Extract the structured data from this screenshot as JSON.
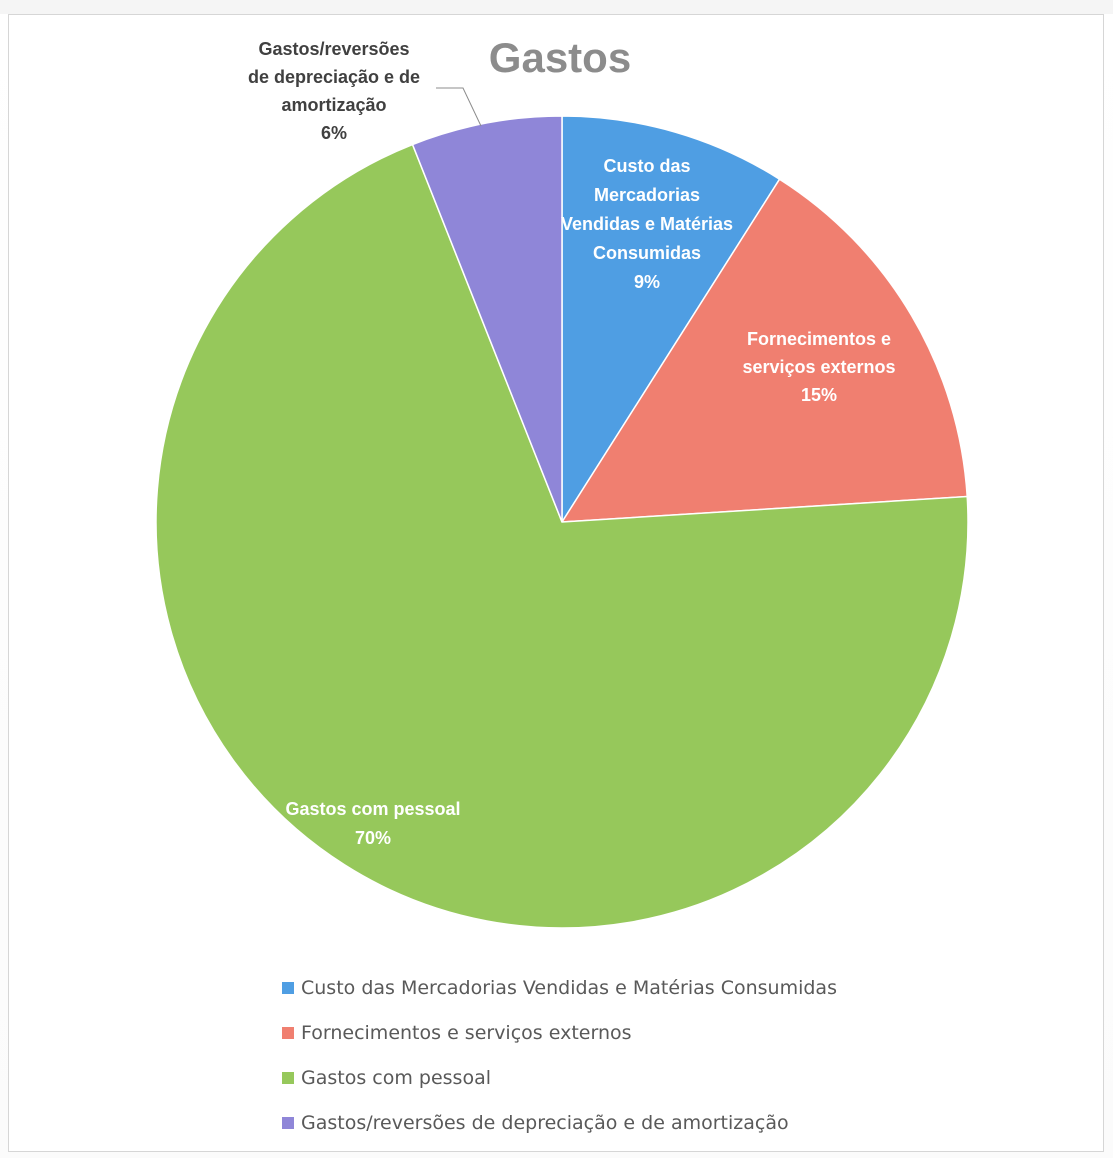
{
  "chart_data": {
    "type": "pie",
    "title": "Gastos",
    "slices": [
      {
        "label": "Custo das Mercadorias Vendidas e Matérias Consumidas",
        "label_lines": [
          "Custo das",
          "Mercadorias",
          "Vendidas e Matérias",
          "Consumidas"
        ],
        "value": 9,
        "percent_label": "9%",
        "color": "#4f9ee3"
      },
      {
        "label": "Fornecimentos e serviços externos",
        "label_lines": [
          "Fornecimentos e",
          "serviços externos"
        ],
        "value": 15,
        "percent_label": "15%",
        "color": "#f07f70"
      },
      {
        "label": "Gastos com pessoal",
        "label_lines": [
          "Gastos com pessoal"
        ],
        "value": 70,
        "percent_label": "70%",
        "color": "#96c85b"
      },
      {
        "label": "Gastos/reversões de depreciação e de amortização",
        "label_lines": [
          "Gastos/reversões",
          "de depreciação e de",
          "amortização"
        ],
        "value": 6,
        "percent_label": "6%",
        "color": "#8f86d8"
      }
    ],
    "legend_position": "bottom"
  }
}
